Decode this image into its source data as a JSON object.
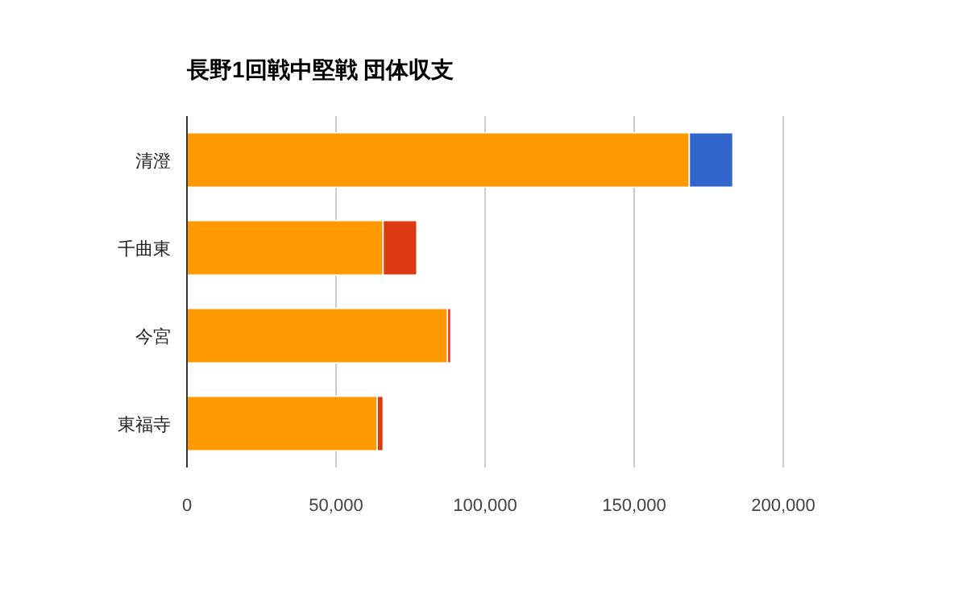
{
  "chart_data": {
    "type": "bar",
    "orientation": "horizontal",
    "stacked": true,
    "title": "長野1回戦中堅戦 団体収支",
    "categories": [
      "清澄",
      "千曲東",
      "今宮",
      "東福寺"
    ],
    "series": [
      {
        "color": "#ff9900",
        "values": [
          168500,
          65800,
          87400,
          63800
        ]
      },
      {
        "colors": [
          "#3366cc",
          "#dc3912",
          "#dc3912",
          "#dc3912"
        ],
        "values": [
          14600,
          11300,
          1100,
          2000
        ]
      }
    ],
    "xlim": [
      0,
      200000
    ],
    "xticks": [
      {
        "value": 0,
        "label": "0"
      },
      {
        "value": 50000,
        "label": "50,000"
      },
      {
        "value": 100000,
        "label": "100,000"
      },
      {
        "value": 150000,
        "label": "150,000"
      },
      {
        "value": 200000,
        "label": "200,000"
      }
    ],
    "grid": "x"
  }
}
